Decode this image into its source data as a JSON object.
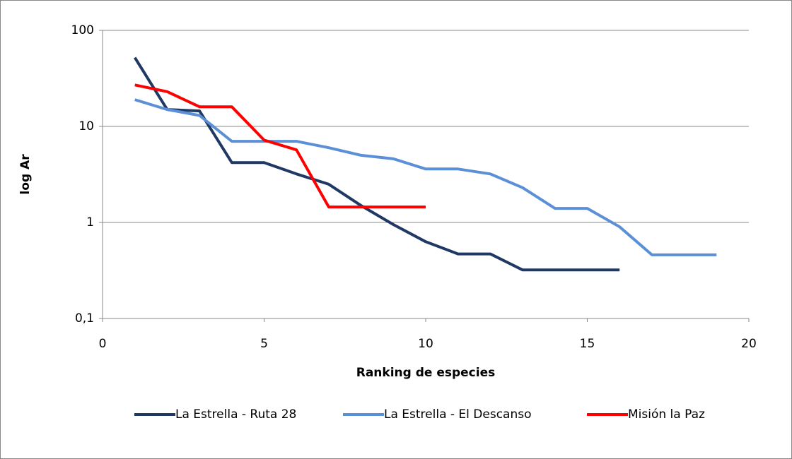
{
  "chart_data": {
    "type": "line",
    "xlabel": "Ranking de especies",
    "ylabel": "log Ar",
    "xlim": [
      0,
      20
    ],
    "xticks": [
      0,
      5,
      10,
      15,
      20
    ],
    "ylim": [
      0.1,
      100
    ],
    "yticks": [
      {
        "value": 0.1,
        "label": "0,1"
      },
      1,
      10,
      100
    ],
    "ylog": true,
    "grid": true,
    "legend": "bottom",
    "series": [
      {
        "name": "La Estrella - Ruta 28",
        "color": "#1f3864",
        "x": [
          1,
          2,
          3,
          4,
          5,
          6,
          7,
          8,
          9,
          10,
          11,
          12,
          13,
          14,
          15,
          16
        ],
        "values": [
          52,
          15,
          14.5,
          4.2,
          4.2,
          3.2,
          2.5,
          1.5,
          0.95,
          0.63,
          0.47,
          0.47,
          0.32,
          0.32,
          0.32,
          0.32
        ]
      },
      {
        "name": "La Estrella - El Descanso",
        "color": "#5b8fd6",
        "x": [
          1,
          2,
          3,
          4,
          5,
          6,
          7,
          8,
          9,
          10,
          11,
          12,
          13,
          14,
          15,
          16,
          17,
          18,
          19
        ],
        "values": [
          19,
          15,
          13,
          7,
          7,
          7,
          6,
          5,
          4.6,
          3.6,
          3.6,
          3.2,
          2.3,
          1.4,
          1.4,
          0.9,
          0.46,
          0.46,
          0.46
        ]
      },
      {
        "name": "Misión la Paz",
        "color": "#ff0000",
        "x": [
          1,
          2,
          3,
          4,
          5,
          6,
          7,
          8,
          9,
          10
        ],
        "values": [
          27,
          23,
          16,
          16,
          7.2,
          5.7,
          1.45,
          1.45,
          1.45,
          1.45
        ]
      }
    ]
  }
}
